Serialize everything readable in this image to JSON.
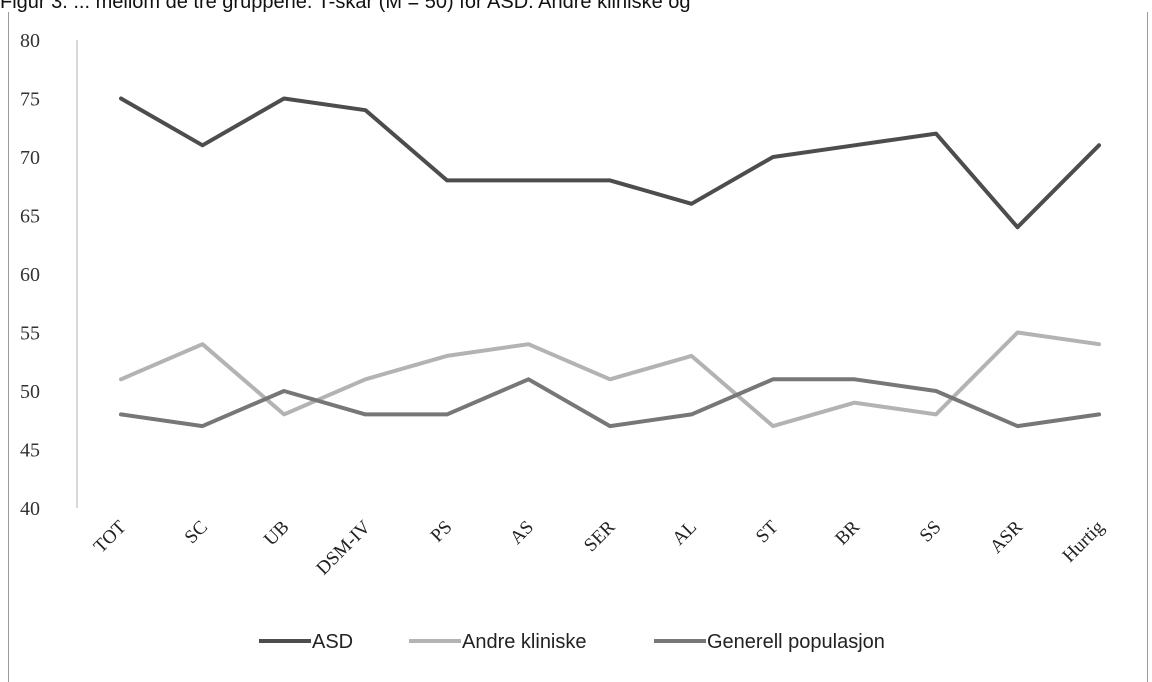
{
  "caption": "Figur 3. ... mellom de tre gruppene. T-skår (M = 50) for ASD. Andre kliniske og",
  "chart_data": {
    "type": "line",
    "categories": [
      "TOT",
      "SC",
      "UB",
      "DSM-IV",
      "PS",
      "AS",
      "SER",
      "AL",
      "ST",
      "BR",
      "SS",
      "ASR",
      "Hurtig"
    ],
    "ylim": [
      40,
      80
    ],
    "yticks": [
      40,
      45,
      50,
      55,
      60,
      65,
      70,
      75,
      80
    ],
    "grid": false,
    "legend_position": "bottom",
    "series": [
      {
        "name": "ASD",
        "color": "#4d4d4d",
        "values": [
          75,
          71,
          75,
          74,
          68,
          68,
          68,
          66,
          70,
          71,
          72,
          64,
          71
        ]
      },
      {
        "name": "Andre kliniske",
        "color": "#b3b3b3",
        "values": [
          51,
          54,
          48,
          51,
          53,
          54,
          51,
          53,
          47,
          49,
          48,
          55,
          54
        ]
      },
      {
        "name": "Generell populasjon",
        "color": "#777777",
        "values": [
          48,
          47,
          50,
          48,
          48,
          51,
          47,
          48,
          51,
          51,
          50,
          47,
          48
        ]
      }
    ]
  }
}
